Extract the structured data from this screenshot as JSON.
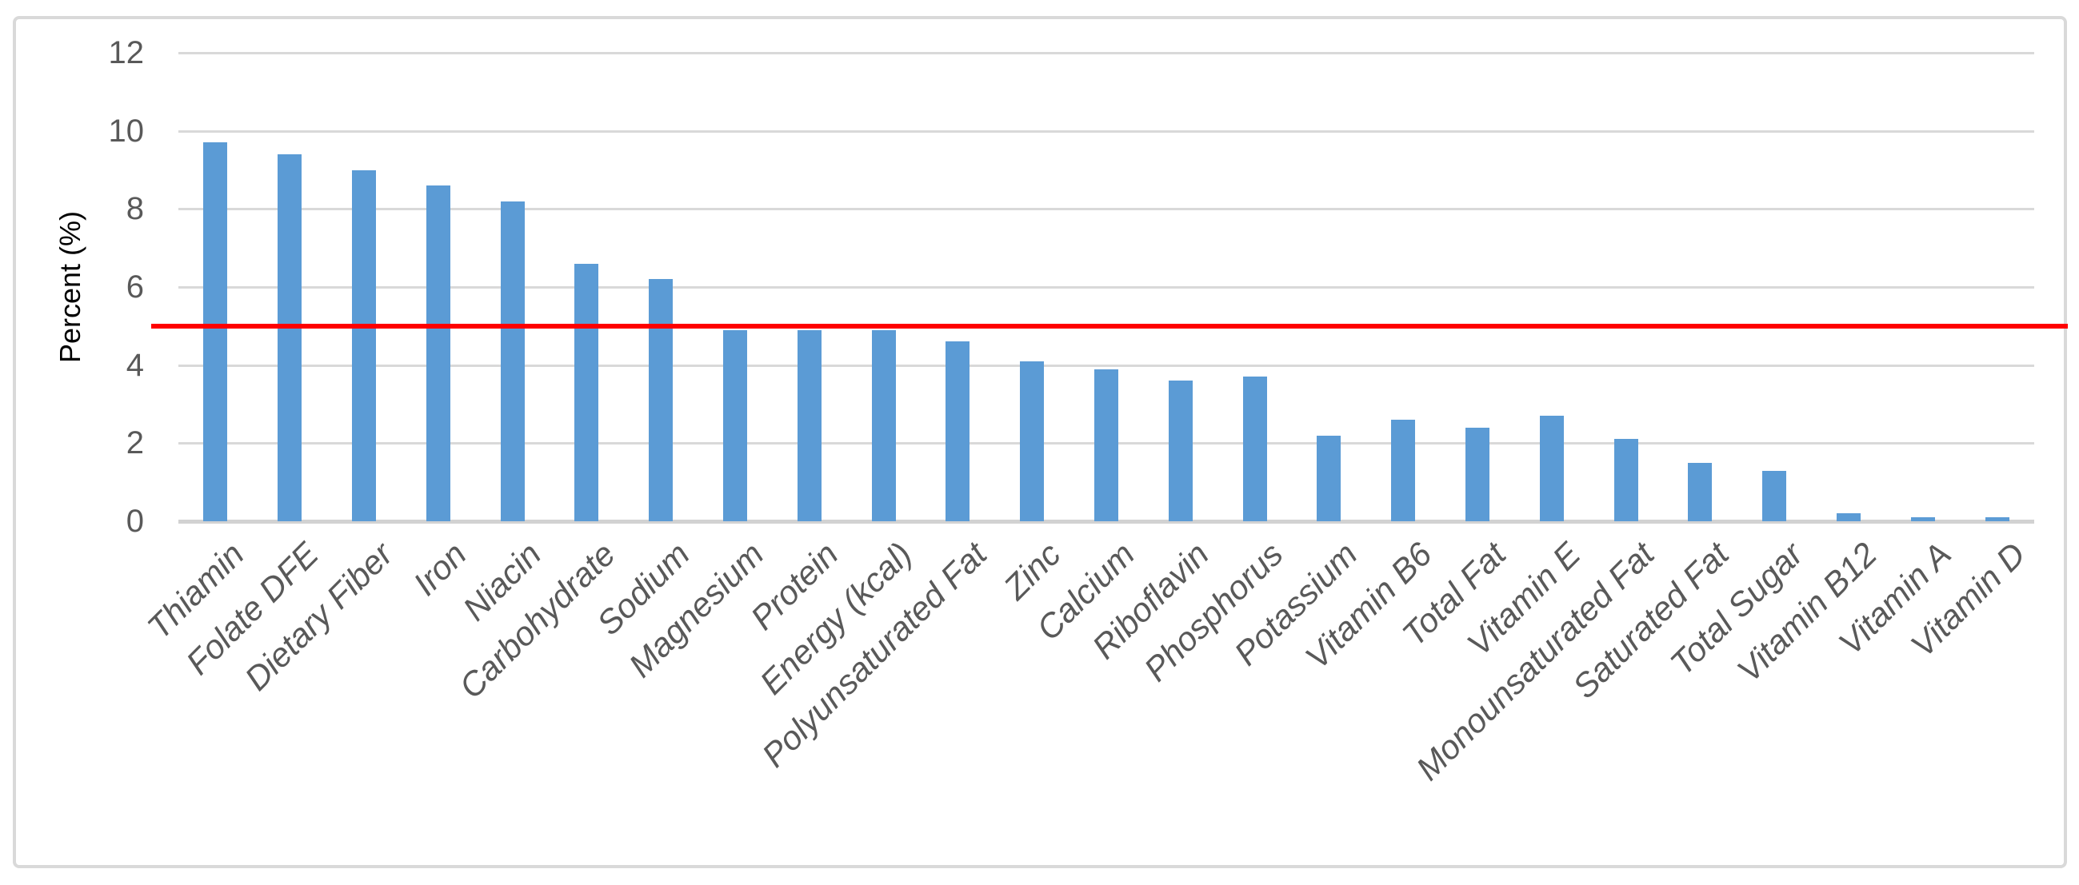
{
  "chart_data": {
    "type": "bar",
    "categories": [
      "Thiamin",
      "Folate DFE",
      "Dietary Fiber",
      "Iron",
      "Niacin",
      "Carbohydrate",
      "Sodium",
      "Magnesium",
      "Protein",
      "Energy (kcal)",
      "Polyunsaturated Fat",
      "Zinc",
      "Calcium",
      "Riboflavin",
      "Phosphorus",
      "Potassium",
      "Vitamin B6",
      "Total Fat",
      "Vitamin E",
      "Monounsaturated Fat",
      "Saturated Fat",
      "Total Sugar",
      "Vitamin B12",
      "Vitamin A",
      "Vitamin D"
    ],
    "values": [
      9.7,
      9.4,
      9.0,
      8.6,
      8.2,
      6.6,
      6.2,
      4.9,
      4.9,
      4.9,
      4.6,
      4.1,
      3.9,
      3.6,
      3.7,
      2.2,
      2.6,
      2.4,
      2.7,
      2.1,
      1.5,
      1.3,
      0.2,
      0.1,
      0.1
    ],
    "title": "",
    "xlabel": "",
    "ylabel": "Percent (%)",
    "yticks": [
      0,
      2,
      4,
      6,
      8,
      10,
      12
    ],
    "ylim": [
      0,
      12
    ],
    "grid": true,
    "legend": false,
    "bar_color": "#5B9BD5",
    "gridline_color": "#D9D9D9",
    "tick_label_color": "#595959",
    "threshold_line": {
      "value": 5,
      "color": "#FF0000"
    }
  }
}
